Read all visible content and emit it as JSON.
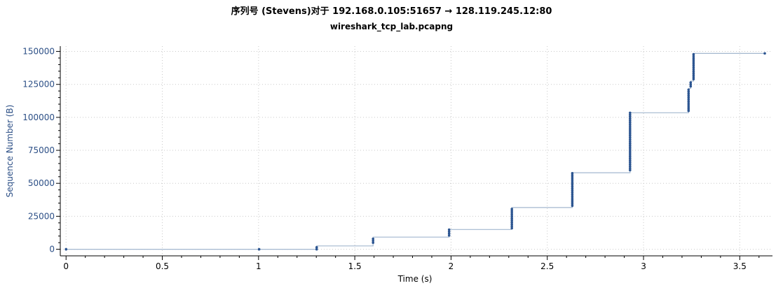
{
  "header": {
    "title": "序列号 (Stevens)对于 192.168.0.105:51657 → 128.119.245.12:80",
    "subtitle": "wireshark_tcp_lab.pcapng"
  },
  "colors": {
    "series": "#2c5591",
    "line": "#a3b7cf",
    "ylabel": "#2c4f86",
    "grid": "#c9c9c9"
  },
  "chart_data": {
    "type": "scatter",
    "title": "序列号 (Stevens)对于 192.168.0.105:51657 → 128.119.245.12:80",
    "subtitle": "wireshark_tcp_lab.pcapng",
    "xlabel": "Time (s)",
    "ylabel": "Sequence Number (B)",
    "xlim": [
      -0.03,
      3.67
    ],
    "ylim": [
      -5000,
      154000
    ],
    "xticks": [
      0,
      0.5,
      1,
      1.5,
      2,
      2.5,
      3,
      3.5
    ],
    "xtick_labels": [
      "0",
      "0.5",
      "1",
      "1.5",
      "2",
      "2.5",
      "3",
      "3.5"
    ],
    "yticks": [
      0,
      25000,
      50000,
      75000,
      100000,
      125000,
      150000
    ],
    "ytick_labels": [
      "0",
      "25000",
      "50000",
      "75000",
      "100000",
      "125000",
      "150000"
    ],
    "grid": true,
    "bursts": [
      {
        "t": 0.0,
        "seq_start": 0,
        "seq_end": 0
      },
      {
        "t": 1.003,
        "seq_start": 0,
        "seq_end": 0
      },
      {
        "t": 1.302,
        "seq_start": 0,
        "seq_end": 2500
      },
      {
        "t": 1.595,
        "seq_start": 5000,
        "seq_end": 9200
      },
      {
        "t": 1.99,
        "seq_start": 10500,
        "seq_end": 15000
      },
      {
        "t": 2.316,
        "seq_start": 16000,
        "seq_end": 31600
      },
      {
        "t": 2.63,
        "seq_start": 33000,
        "seq_end": 58000
      },
      {
        "t": 2.93,
        "seq_start": 60000,
        "seq_end": 103500
      },
      {
        "t": 3.234,
        "seq_start": 105000,
        "seq_end": 122000
      },
      {
        "t": 3.245,
        "seq_start": 123500,
        "seq_end": 127500
      },
      {
        "t": 3.26,
        "seq_start": 129000,
        "seq_end": 148500
      },
      {
        "t": 3.63,
        "seq_start": 148500,
        "seq_end": 148500
      }
    ],
    "step_line": [
      [
        0.0,
        0
      ],
      [
        1.302,
        0
      ],
      [
        1.302,
        2500
      ],
      [
        1.595,
        2500
      ],
      [
        1.595,
        9200
      ],
      [
        1.99,
        9200
      ],
      [
        1.99,
        15000
      ],
      [
        2.316,
        15000
      ],
      [
        2.316,
        31600
      ],
      [
        2.63,
        31600
      ],
      [
        2.63,
        58000
      ],
      [
        2.93,
        58000
      ],
      [
        2.93,
        103500
      ],
      [
        3.234,
        103500
      ],
      [
        3.234,
        122000
      ],
      [
        3.245,
        122000
      ],
      [
        3.245,
        127500
      ],
      [
        3.26,
        127500
      ],
      [
        3.26,
        148500
      ],
      [
        3.63,
        148500
      ]
    ],
    "point_step_bytes": 1448
  }
}
